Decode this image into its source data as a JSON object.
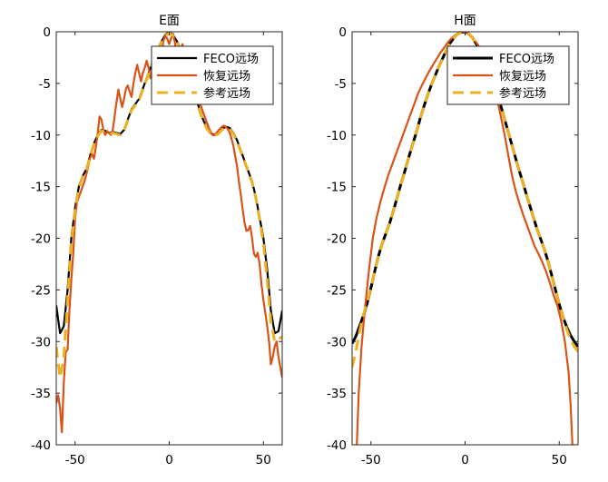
{
  "chart_data": [
    {
      "type": "line",
      "title": "E面",
      "xlabel": "",
      "ylabel": "",
      "xlim": [
        -60,
        60
      ],
      "ylim": [
        -40,
        0
      ],
      "xticks": [
        -50,
        0,
        50
      ],
      "yticks": [
        0,
        -5,
        -10,
        -15,
        -20,
        -25,
        -30,
        -35,
        -40
      ],
      "legend": "top-right",
      "series": [
        {
          "name": "FECO远场",
          "color": "#000000",
          "style": "solid",
          "x": [
            -60,
            -58,
            -56,
            -54,
            -52,
            -50,
            -48,
            -46,
            -44,
            -42,
            -40,
            -38,
            -36,
            -34,
            -32,
            -30,
            -28,
            -26,
            -24,
            -22,
            -20,
            -18,
            -16,
            -14,
            -12,
            -10,
            -8,
            -6,
            -4,
            -2,
            0,
            2,
            4,
            6,
            8,
            10,
            12,
            14,
            16,
            18,
            20,
            22,
            24,
            26,
            28,
            30,
            32,
            34,
            36,
            38,
            40,
            42,
            44,
            46,
            48,
            50,
            52,
            54,
            56,
            58,
            60
          ],
          "y": [
            -26.5,
            -29.2,
            -28.5,
            -25,
            -20,
            -17,
            -15,
            -14,
            -13.3,
            -12,
            -10.8,
            -10,
            -9.5,
            -9.6,
            -9.8,
            -9.7,
            -9.8,
            -9.9,
            -9.5,
            -8.5,
            -7.5,
            -7,
            -6.5,
            -5.5,
            -4.5,
            -3.5,
            -2.5,
            -1.6,
            -0.9,
            -0.3,
            0,
            -0.3,
            -0.9,
            -1.6,
            -2.5,
            -3.5,
            -4.8,
            -6.2,
            -7.5,
            -8.5,
            -9.3,
            -9.8,
            -10,
            -9.8,
            -9.4,
            -9.2,
            -9.3,
            -9.8,
            -10.5,
            -11.5,
            -12.5,
            -13.5,
            -14.5,
            -16,
            -18,
            -20,
            -23,
            -27,
            -29.2,
            -29,
            -27
          ]
        },
        {
          "name": "恢复远场",
          "color": "#d95319",
          "style": "solid",
          "x": [
            -60,
            -59,
            -58,
            -57,
            -56,
            -55,
            -54,
            -53,
            -52,
            -51,
            -50,
            -49,
            -48,
            -47,
            -46,
            -45,
            -44,
            -43,
            -42,
            -41,
            -40,
            -39,
            -38,
            -37,
            -36,
            -35,
            -34,
            -33,
            -32,
            -31,
            -30,
            -29,
            -28,
            -27,
            -26,
            -25,
            -24,
            -23,
            -22,
            -21,
            -20,
            -19,
            -18,
            -17,
            -16,
            -15,
            -14,
            -13,
            -12,
            -11,
            -10,
            -9,
            -8,
            -7,
            -6,
            -5,
            -4,
            -3,
            -2,
            -1,
            0,
            1,
            2,
            3,
            4,
            5,
            6,
            7,
            8,
            9,
            10,
            11,
            12,
            13,
            14,
            15,
            16,
            17,
            18,
            19,
            20,
            21,
            22,
            23,
            24,
            25,
            26,
            27,
            28,
            29,
            30,
            31,
            32,
            33,
            34,
            35,
            36,
            37,
            38,
            39,
            40,
            41,
            42,
            43,
            44,
            45,
            46,
            47,
            48,
            49,
            50,
            51,
            52,
            53,
            54,
            55,
            56,
            57,
            58,
            59,
            60
          ],
          "y": [
            -36,
            -35.2,
            -36.5,
            -38.8,
            -34,
            -31,
            -30.8,
            -27,
            -24,
            -21.5,
            -18,
            -16.5,
            -16,
            -15.5,
            -15,
            -14.5,
            -13.8,
            -13,
            -12.2,
            -11.8,
            -12.3,
            -11.2,
            -9.8,
            -8.2,
            -8.5,
            -9.5,
            -10,
            -9.6,
            -9.8,
            -10,
            -9.5,
            -8.2,
            -6.8,
            -5.6,
            -6.5,
            -7.3,
            -6.5,
            -5.5,
            -5.2,
            -5.8,
            -6.3,
            -5,
            -4,
            -3.2,
            -4,
            -4.8,
            -4,
            -3.5,
            -2.8,
            -3.5,
            -4.5,
            -3.6,
            -2.3,
            -1.5,
            -2.5,
            -3.5,
            -2,
            -0.8,
            -0.4,
            -0.7,
            -1.2,
            -0.6,
            -0.2,
            -1,
            -2.5,
            -3.5,
            -2.2,
            -1.2,
            -2,
            -3.5,
            -4.5,
            -3.5,
            -2.6,
            -3.5,
            -5,
            -6.2,
            -6.8,
            -7.3,
            -7.8,
            -8.3,
            -8.8,
            -9.3,
            -9.7,
            -10,
            -10,
            -9.8,
            -9.6,
            -9.4,
            -9.2,
            -9.1,
            -9.2,
            -9.4,
            -9.7,
            -10.3,
            -11,
            -12,
            -13,
            -14.5,
            -15.8,
            -17.2,
            -18.5,
            -19.3,
            -19.2,
            -18.8,
            -20,
            -21.5,
            -21.8,
            -21.4,
            -22.5,
            -24.5,
            -26,
            -27.2,
            -28.5,
            -30,
            -32.2,
            -31.5,
            -30.5,
            -30,
            -31.5,
            -32.5,
            -33.5
          ]
        },
        {
          "name": "参考远场",
          "color": "#edb120",
          "style": "dashed",
          "x": [
            -60,
            -58,
            -56,
            -54,
            -52,
            -50,
            -48,
            -46,
            -44,
            -42,
            -40,
            -38,
            -36,
            -34,
            -32,
            -30,
            -28,
            -26,
            -24,
            -22,
            -20,
            -18,
            -16,
            -14,
            -12,
            -10,
            -8,
            -6,
            -4,
            -2,
            0,
            2,
            4,
            6,
            8,
            10,
            12,
            14,
            16,
            18,
            20,
            22,
            24,
            26,
            28,
            30,
            32,
            34,
            36,
            38,
            40,
            42,
            44,
            46,
            48,
            50,
            52,
            54,
            56,
            58,
            60
          ],
          "y": [
            -30.5,
            -33.5,
            -31.5,
            -26,
            -20.5,
            -17.2,
            -15.2,
            -14.1,
            -13.4,
            -12.1,
            -10.9,
            -10.1,
            -9.6,
            -9.7,
            -9.9,
            -9.8,
            -9.9,
            -10,
            -9.6,
            -8.6,
            -7.6,
            -7.1,
            -6.6,
            -5.6,
            -4.6,
            -3.6,
            -2.6,
            -1.7,
            -1,
            -0.4,
            -0.1,
            -0.4,
            -1,
            -1.7,
            -2.6,
            -3.6,
            -4.9,
            -6.3,
            -7.6,
            -8.6,
            -9.4,
            -9.9,
            -10.1,
            -9.9,
            -9.5,
            -9.3,
            -9.4,
            -9.9,
            -10.6,
            -11.6,
            -12.6,
            -13.6,
            -14.6,
            -16.1,
            -18.2,
            -20.5,
            -24,
            -28,
            -30,
            -29.8,
            -29.5
          ]
        }
      ]
    },
    {
      "type": "line",
      "title": "H面",
      "xlabel": "",
      "ylabel": "",
      "xlim": [
        -60,
        60
      ],
      "ylim": [
        -40,
        0
      ],
      "xticks": [
        -50,
        0,
        50
      ],
      "yticks": [
        0,
        -5,
        -10,
        -15,
        -20,
        -25,
        -30,
        -35,
        -40
      ],
      "legend": "top-right",
      "series": [
        {
          "name": "FECO远场",
          "color": "#000000",
          "style": "solid",
          "x": [
            -60,
            -58,
            -56,
            -54,
            -52,
            -50,
            -48,
            -46,
            -44,
            -42,
            -40,
            -38,
            -36,
            -34,
            -32,
            -30,
            -28,
            -26,
            -24,
            -22,
            -20,
            -18,
            -16,
            -14,
            -12,
            -10,
            -8,
            -6,
            -4,
            -2,
            0,
            2,
            4,
            6,
            8,
            10,
            12,
            14,
            16,
            18,
            20,
            22,
            24,
            26,
            28,
            30,
            32,
            34,
            36,
            38,
            40,
            42,
            44,
            46,
            48,
            50,
            52,
            54,
            56,
            58,
            60
          ],
          "y": [
            -30.2,
            -29.5,
            -28.5,
            -27.5,
            -26.3,
            -24.8,
            -23.2,
            -21.7,
            -20.5,
            -19.5,
            -18.5,
            -17.3,
            -16,
            -14.7,
            -13.5,
            -12.2,
            -11,
            -9.8,
            -8.5,
            -7.3,
            -6.2,
            -5.2,
            -4.3,
            -3.4,
            -2.6,
            -1.8,
            -1.1,
            -0.6,
            -0.2,
            -0.05,
            0,
            -0.2,
            -0.6,
            -1.2,
            -1.9,
            -2.7,
            -3.6,
            -4.5,
            -5.5,
            -6.6,
            -7.8,
            -9.1,
            -10.4,
            -11.7,
            -13,
            -14.2,
            -15.4,
            -16.6,
            -17.8,
            -19,
            -20,
            -21,
            -22.2,
            -23.6,
            -25,
            -26.4,
            -27.6,
            -28.6,
            -29.4,
            -30,
            -30.5
          ]
        },
        {
          "name": "恢复远场",
          "color": "#d95319",
          "style": "solid",
          "x": [
            -57.5,
            -56.5,
            -55,
            -53,
            -51,
            -49,
            -47,
            -45,
            -43,
            -41,
            -39,
            -37,
            -35,
            -33,
            -31,
            -29,
            -27,
            -25,
            -23,
            -21,
            -19,
            -17,
            -15,
            -13,
            -11,
            -9,
            -7,
            -5,
            -3,
            -1,
            0,
            1,
            3,
            5,
            7,
            9,
            11,
            13,
            15,
            17,
            19,
            21,
            23,
            25,
            27,
            29,
            31,
            33,
            35,
            37,
            39,
            41,
            43,
            45,
            47,
            49,
            51,
            53,
            55,
            56,
            57
          ],
          "y": [
            -40,
            -35,
            -30.5,
            -26.5,
            -23,
            -20,
            -18,
            -16.5,
            -15.2,
            -14,
            -13,
            -12,
            -11,
            -10,
            -9,
            -8,
            -7,
            -6,
            -5.2,
            -4.5,
            -3.8,
            -3.2,
            -2.6,
            -2,
            -1.5,
            -1,
            -0.6,
            -0.3,
            -0.1,
            0,
            0,
            -0.1,
            -0.4,
            -0.8,
            -1.3,
            -2,
            -2.8,
            -3.8,
            -5,
            -6.5,
            -8.2,
            -10,
            -12,
            -14,
            -15.5,
            -16.7,
            -17.8,
            -18.8,
            -19.8,
            -20.8,
            -21.5,
            -22.3,
            -23.2,
            -24.3,
            -25.5,
            -26.5,
            -28,
            -30,
            -33,
            -36,
            -40
          ]
        },
        {
          "name": "参考远场",
          "color": "#edb120",
          "style": "dashed",
          "x": [
            -60,
            -58,
            -56,
            -54,
            -52,
            -50,
            -48,
            -46,
            -44,
            -42,
            -40,
            -38,
            -36,
            -34,
            -32,
            -30,
            -28,
            -26,
            -24,
            -22,
            -20,
            -18,
            -16,
            -14,
            -12,
            -10,
            -8,
            -6,
            -4,
            -2,
            0,
            2,
            4,
            6,
            8,
            10,
            12,
            14,
            16,
            18,
            20,
            22,
            24,
            26,
            28,
            30,
            32,
            34,
            36,
            38,
            40,
            42,
            44,
            46,
            48,
            50,
            52,
            54,
            56,
            58,
            60
          ],
          "y": [
            -32.5,
            -31,
            -29,
            -27.4,
            -26.2,
            -24.8,
            -23.2,
            -21.7,
            -20.5,
            -19.5,
            -18.5,
            -17.3,
            -16,
            -14.7,
            -13.5,
            -12.2,
            -11,
            -9.8,
            -8.5,
            -7.3,
            -6.2,
            -5.2,
            -4.3,
            -3.4,
            -2.6,
            -1.8,
            -1.1,
            -0.6,
            -0.2,
            -0.05,
            0,
            -0.2,
            -0.6,
            -1.2,
            -1.9,
            -2.7,
            -3.6,
            -4.5,
            -5.5,
            -6.6,
            -7.8,
            -9.1,
            -10.4,
            -11.7,
            -13,
            -14.2,
            -15.4,
            -16.6,
            -17.8,
            -19,
            -20,
            -21,
            -22.2,
            -23.6,
            -25,
            -26.4,
            -27.6,
            -28.8,
            -29.8,
            -30.5,
            -31
          ]
        }
      ]
    }
  ]
}
